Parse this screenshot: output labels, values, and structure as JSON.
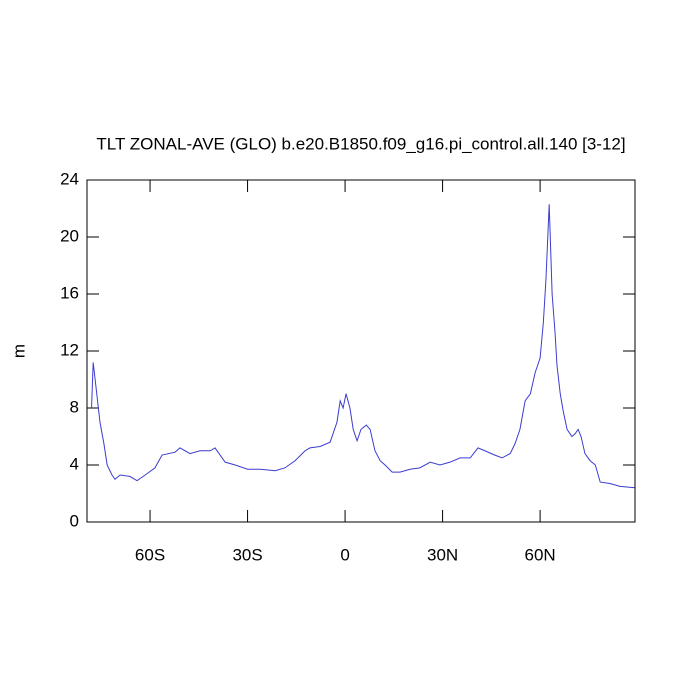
{
  "chart_data": {
    "type": "line",
    "title": "TLT ZONAL-AVE (GLO) b.e20.B1850.f09_g16.pi_control.all.140 [3-12]",
    "ylabel": "m",
    "x": [
      -78,
      -77.5,
      -75.4,
      -74.2,
      -73.2,
      -71.7,
      -70.8,
      -69.2,
      -66.2,
      -64,
      -61.5,
      -58.5,
      -56.3,
      -52.3,
      -50.8,
      -47.7,
      -44.6,
      -41.5,
      -40,
      -36.9,
      -33.8,
      -30,
      -26,
      -21.5,
      -18.5,
      -15.4,
      -12.3,
      -10.8,
      -7.7,
      -4.6,
      -2.5,
      -1.5,
      -0.6,
      0.3,
      1.5,
      2.5,
      3.7,
      4.9,
      6.5,
      7.7,
      9.2,
      10.8,
      12.3,
      14.5,
      16.9,
      20,
      23,
      26.2,
      29.2,
      32.3,
      35.4,
      38.5,
      40.9,
      43,
      46,
      48.3,
      50.8,
      52.3,
      53.8,
      55.4,
      57,
      58.5,
      60,
      61,
      61.8,
      62.8,
      63.7,
      64.6,
      65.2,
      66.2,
      67.1,
      68.3,
      69.8,
      70.8,
      71.7,
      72.6,
      73.8,
      75.4,
      77,
      78.5,
      81.5,
      84.6,
      89.2
    ],
    "series": [
      {
        "name": "TLT",
        "color": "#3c3cd0",
        "values": [
          8,
          11.2,
          7,
          5.5,
          4,
          3.3,
          3,
          3.3,
          3.2,
          2.9,
          3.3,
          3.8,
          4.7,
          4.9,
          5.2,
          4.8,
          5,
          5,
          5.2,
          4.2,
          4,
          3.7,
          3.7,
          3.6,
          3.8,
          4.3,
          5,
          5.2,
          5.3,
          5.6,
          7,
          8.5,
          8,
          9,
          8,
          6.5,
          5.7,
          6.5,
          6.8,
          6.5,
          5,
          4.3,
          4,
          3.5,
          3.5,
          3.7,
          3.8,
          4.2,
          4,
          4.2,
          4.5,
          4.5,
          5.2,
          5,
          4.7,
          4.5,
          4.8,
          5.5,
          6.5,
          8.5,
          9,
          10.5,
          11.5,
          14,
          17,
          22.3,
          16,
          13.3,
          11,
          9,
          7.8,
          6.5,
          6,
          6.2,
          6.5,
          6,
          4.8,
          4.3,
          4,
          2.8,
          2.7,
          2.5,
          2.4
        ]
      }
    ],
    "xlim": [
      -79.4,
      89.2
    ],
    "xticks": [
      {
        "value": -60,
        "label": "60S"
      },
      {
        "value": -30,
        "label": "30S"
      },
      0,
      {
        "value": 30,
        "label": "30N"
      },
      {
        "value": 60,
        "label": "60N"
      }
    ],
    "ylim": [
      0,
      24
    ],
    "yticks": [
      0,
      4,
      8,
      12,
      16,
      20,
      24
    ]
  }
}
